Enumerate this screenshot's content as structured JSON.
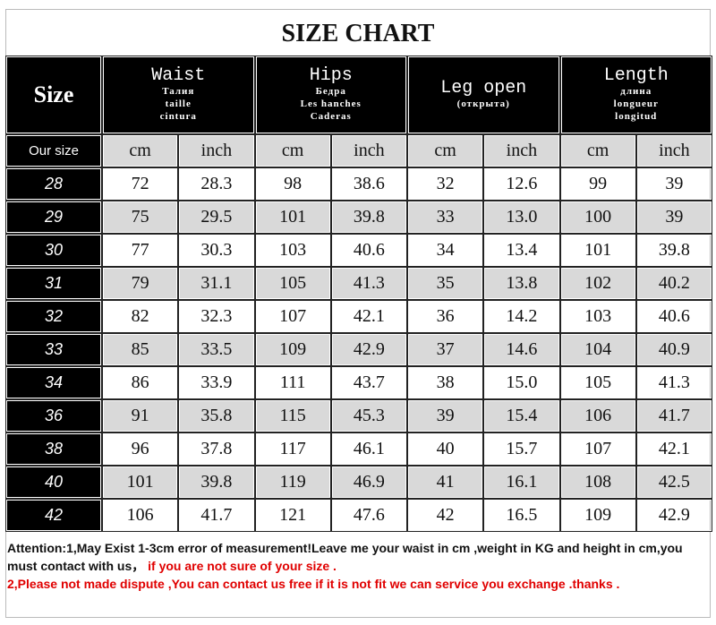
{
  "title": "SIZE CHART",
  "header": {
    "size": "Size",
    "groups": [
      {
        "name": "Waist",
        "sub": [
          "Талия",
          "taille",
          "cintura"
        ]
      },
      {
        "name": "Hips",
        "sub": [
          "Бедра",
          "Les hanches",
          "Caderas"
        ]
      },
      {
        "name": "Leg open",
        "sub": [
          "(открыта)"
        ]
      },
      {
        "name": "Length",
        "sub": [
          "длина",
          "longueur",
          "longitud"
        ]
      }
    ]
  },
  "subheader": {
    "label": "Our size",
    "units": [
      "cm",
      "inch",
      "cm",
      "inch",
      "cm",
      "inch",
      "cm",
      "inch"
    ]
  },
  "rows": [
    [
      "28",
      "72",
      "28.3",
      "98",
      "38.6",
      "32",
      "12.6",
      "99",
      "39"
    ],
    [
      "29",
      "75",
      "29.5",
      "101",
      "39.8",
      "33",
      "13.0",
      "100",
      "39"
    ],
    [
      "30",
      "77",
      "30.3",
      "103",
      "40.6",
      "34",
      "13.4",
      "101",
      "39.8"
    ],
    [
      "31",
      "79",
      "31.1",
      "105",
      "41.3",
      "35",
      "13.8",
      "102",
      "40.2"
    ],
    [
      "32",
      "82",
      "32.3",
      "107",
      "42.1",
      "36",
      "14.2",
      "103",
      "40.6"
    ],
    [
      "33",
      "85",
      "33.5",
      "109",
      "42.9",
      "37",
      "14.6",
      "104",
      "40.9"
    ],
    [
      "34",
      "86",
      "33.9",
      "111",
      "43.7",
      "38",
      "15.0",
      "105",
      "41.3"
    ],
    [
      "36",
      "91",
      "35.8",
      "115",
      "45.3",
      "39",
      "15.4",
      "106",
      "41.7"
    ],
    [
      "38",
      "96",
      "37.8",
      "117",
      "46.1",
      "40",
      "15.7",
      "107",
      "42.1"
    ],
    [
      "40",
      "101",
      "39.8",
      "119",
      "46.9",
      "41",
      "16.1",
      "108",
      "42.5"
    ],
    [
      "42",
      "106",
      "41.7",
      "121",
      "47.6",
      "42",
      "16.5",
      "109",
      "42.9"
    ]
  ],
  "notes": {
    "line1": "Attention:1,May Exist 1-3cm error of measurement!Leave me your waist in cm ,weight in KG and height in cm,you must contact with us，",
    "line1_red": " if you are not sure of your size .",
    "line2": "2,Please not made dispute ,You can contact us free if it is not fit  we can service you exchange .thanks ."
  }
}
